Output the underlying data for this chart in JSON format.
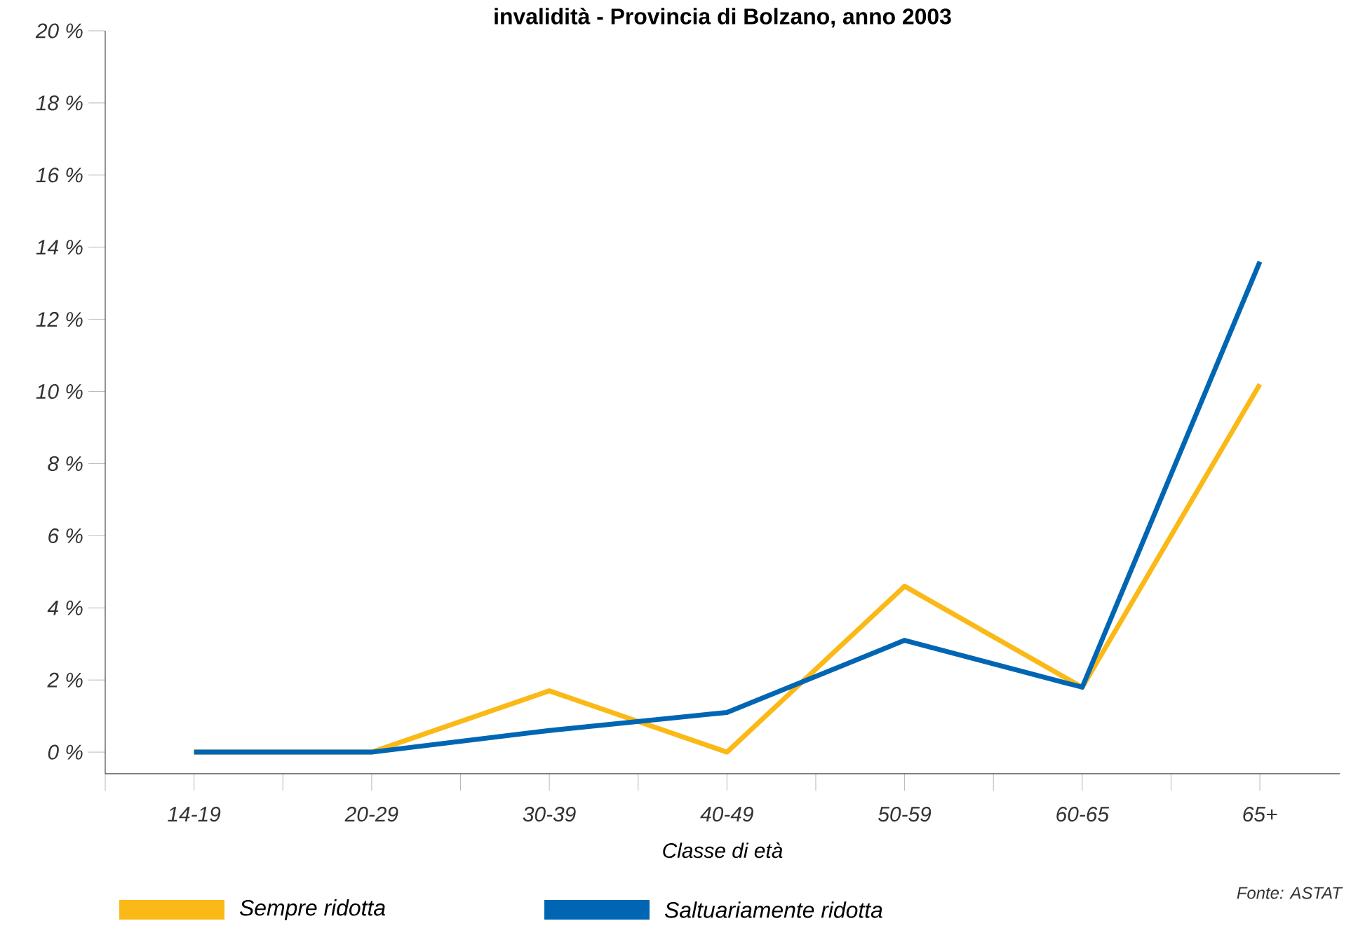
{
  "chart_data": {
    "type": "line",
    "title": "invalidità - Provincia di Bolzano, anno 2003",
    "xlabel": "Classe di età",
    "categories": [
      "14-19",
      "20-29",
      "30-39",
      "40-49",
      "50-59",
      "60-65",
      "65+"
    ],
    "series": [
      {
        "name": "Sempre ridotta",
        "color": "#fbb917",
        "values": [
          0,
          0,
          1.7,
          0,
          4.6,
          1.8,
          10.2
        ]
      },
      {
        "name": "Saltuariamente ridotta",
        "color": "#0066b3",
        "values": [
          0,
          0,
          0.6,
          1.1,
          3.1,
          1.8,
          13.6
        ]
      }
    ],
    "ylim": [
      -0.6,
      20
    ],
    "yticks": [
      {
        "value": 0,
        "label": "0 %"
      },
      {
        "value": 2,
        "label": "2 %"
      },
      {
        "value": 4,
        "label": "4 %"
      },
      {
        "value": 6,
        "label": "6 %"
      },
      {
        "value": 8,
        "label": "8 %"
      },
      {
        "value": 10,
        "label": "10 %"
      },
      {
        "value": 12,
        "label": "12 %"
      },
      {
        "value": 14,
        "label": "14 %"
      },
      {
        "value": 16,
        "label": "16 %"
      },
      {
        "value": 18,
        "label": "18 %"
      },
      {
        "value": 20,
        "label": "20 %"
      }
    ],
    "grid": false,
    "legend": "bottom",
    "marker": "none",
    "line_style": "solid",
    "annotations": [
      "Fonte: ASTAT"
    ]
  }
}
